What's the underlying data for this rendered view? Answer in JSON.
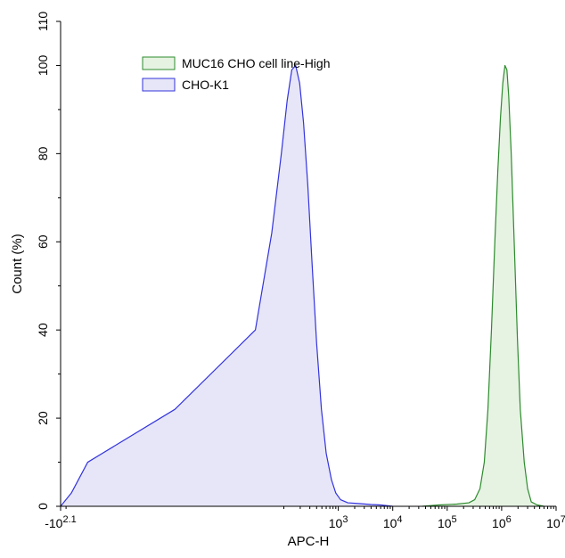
{
  "chart_data": {
    "type": "area",
    "title": "",
    "xlabel": "APC-H",
    "ylabel": "Count (%)",
    "x_scale": "log",
    "xlim": [
      -125.89,
      10000000
    ],
    "ylim": [
      0,
      110
    ],
    "grid": false,
    "legend_position": "top-center",
    "y_ticks": [
      {
        "value": 0,
        "label": "0"
      },
      {
        "value": 20,
        "label": "20"
      },
      {
        "value": 40,
        "label": "40"
      },
      {
        "value": 60,
        "label": "60"
      },
      {
        "value": 80,
        "label": "80"
      },
      {
        "value": 100,
        "label": "100"
      },
      {
        "value": 110,
        "label": "110"
      }
    ],
    "x_ticks": [
      {
        "value": -125.89,
        "base": "-10",
        "exp": "2.1"
      },
      {
        "value": 1000,
        "base": "10",
        "exp": "3"
      },
      {
        "value": 10000,
        "base": "10",
        "exp": "4"
      },
      {
        "value": 100000,
        "base": "10",
        "exp": "5"
      },
      {
        "value": 1000000,
        "base": "10",
        "exp": "6"
      },
      {
        "value": 10000000,
        "base": "10",
        "exp": "7"
      }
    ],
    "series": [
      {
        "name": "MUC16 CHO cell line-High",
        "color": "#2e8b2e",
        "fill": "#e6f3e3",
        "points": [
          [
            35000,
            0
          ],
          [
            70000,
            0.3
          ],
          [
            150000,
            0.5
          ],
          [
            250000,
            0.8
          ],
          [
            320000,
            1.5
          ],
          [
            400000,
            4
          ],
          [
            480000,
            10
          ],
          [
            560000,
            22
          ],
          [
            650000,
            40
          ],
          [
            750000,
            60
          ],
          [
            850000,
            76
          ],
          [
            950000,
            88
          ],
          [
            1050000,
            96
          ],
          [
            1150000,
            100
          ],
          [
            1250000,
            99
          ],
          [
            1350000,
            93
          ],
          [
            1500000,
            80
          ],
          [
            1700000,
            60
          ],
          [
            1950000,
            38
          ],
          [
            2200000,
            22
          ],
          [
            2600000,
            10
          ],
          [
            3000000,
            4
          ],
          [
            3500000,
            1
          ],
          [
            4500000,
            0.3
          ],
          [
            6000000,
            0
          ]
        ]
      },
      {
        "name": "CHO-K1",
        "color": "#3333dd",
        "fill": "#e6e6f8",
        "points": [
          [
            -125.89,
            0
          ],
          [
            -80,
            3
          ],
          [
            -40,
            10
          ],
          [
            0,
            22
          ],
          [
            30,
            40
          ],
          [
            60,
            62
          ],
          [
            90,
            80
          ],
          [
            115,
            92
          ],
          [
            140,
            99
          ],
          [
            165,
            100
          ],
          [
            195,
            96
          ],
          [
            230,
            87
          ],
          [
            275,
            73
          ],
          [
            330,
            55
          ],
          [
            400,
            37
          ],
          [
            490,
            22
          ],
          [
            600,
            12
          ],
          [
            750,
            6
          ],
          [
            900,
            3
          ],
          [
            1100,
            1.5
          ],
          [
            1500,
            0.8
          ],
          [
            2500,
            0.6
          ],
          [
            4000,
            0.4
          ],
          [
            6000,
            0.3
          ],
          [
            10000,
            0
          ]
        ]
      }
    ]
  }
}
